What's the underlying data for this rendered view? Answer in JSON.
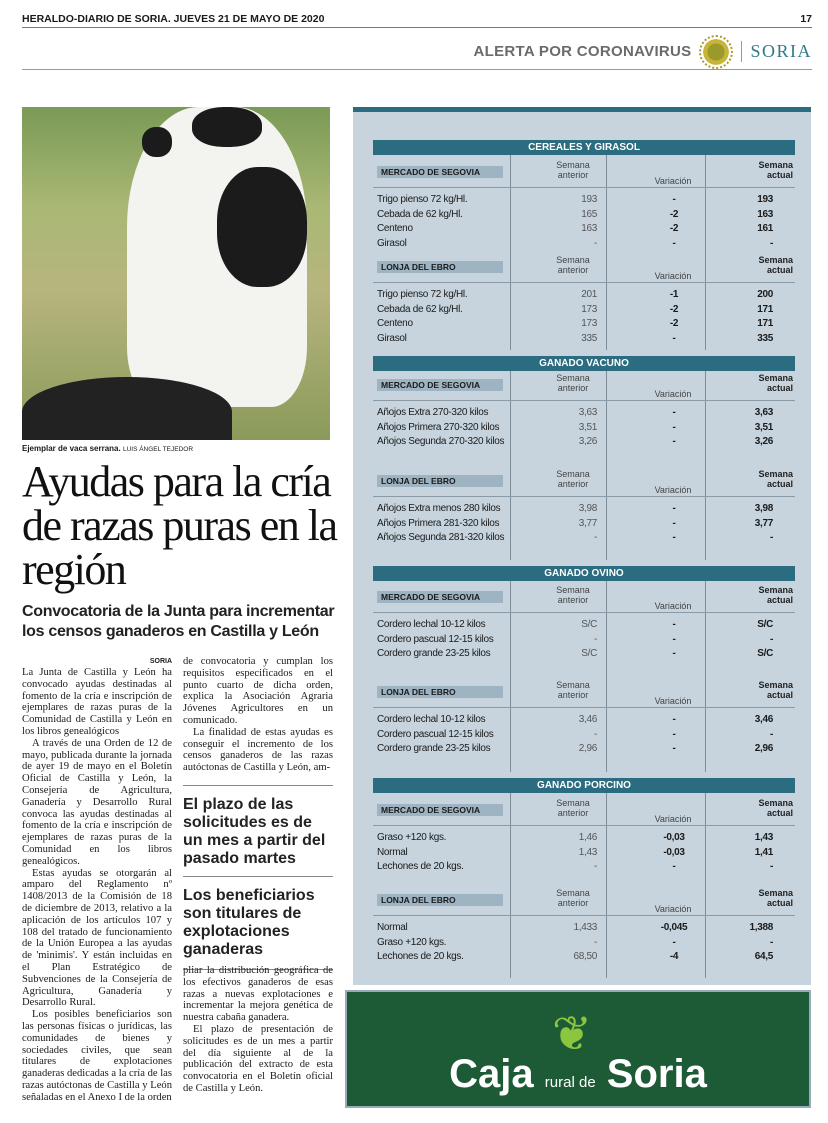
{
  "header": {
    "paper": "HERALDO-DIARIO DE SORIA. JUEVES 21 DE MAYO DE 2020",
    "page": "17",
    "section": "ALERTA POR CORONAVIRUS",
    "edition": "SORIA"
  },
  "photo": {
    "caption": "Ejemplar de vaca serrana.",
    "credit": "LUIS ÁNGEL TEJEDOR"
  },
  "article": {
    "headline": "Ayudas para la cría de razas puras en la región",
    "subhead": "Convocatoria de la Junta para incrementar los censos ganaderos en Castilla y León",
    "location": "SORIA",
    "col1": [
      "La Junta de Castilla y León ha convocado ayudas destinadas al fomento de la cría e inscripción de ejemplares de razas puras de la Comunidad de Castilla y León en los libros genealógicos",
      "A través de una Orden de 12 de mayo, publicada durante la jornada de ayer 19 de mayo en el Boletín Oficial de Castilla y León, la Consejería de Agricultura, Ganadería y Desarrollo Rural convoca las ayudas destinadas al fomento de la cría e inscripción de ejemplares de razas puras de la Comunidad en los libros genealógicos.",
      "Estas ayudas se otorgarán al amparo del Reglamento nº 1408/2013 de la Comisión de 18 de diciembre de 2013, relativo a la aplicación de los artículos 107 y 108 del tratado de funcionamiento de la Unión Europea a las ayudas de 'minimis'. Y están incluidas en el Plan Estratégico de Subvenciones de la Consejería de Agricultura, Ganadería y Desarrollo Rural.",
      "Los posibles beneficiarios son las personas físicas o jurídicas, las comunidades de bienes y sociedades civiles, que sean titulares de explotaciones ganaderas dedicadas a la cría de las razas autóctonas de Castilla y León señaladas en el Anexo I de la orden"
    ],
    "col2a": [
      "de convocatoria y cumplan los requisitos especificados en el punto cuarto de dicha orden, explica la Asociación Agraria Jóvenes Agricultores en un comunicado.",
      "La finalidad de estas ayudas es conseguir el incremento de los censos ganaderos de las razas autóctonas de Castilla y León, am-"
    ],
    "pull1": "El plazo de las solicitudes es de un mes a partir del pasado martes",
    "pull2": "Los beneficiarios son titulares de explotaciones ganaderas",
    "col2b": [
      "pliar la distribución geográfica de los efectivos ganaderos de esas razas a nuevas explotaciones e incrementar la mejora genética de nuestra cabaña ganadera.",
      "El plazo de presentación de solicitudes es de un mes a partir del día siguiente al de la publicación del extracto de esta convocatoria en el Boletín oficial de Castilla y León."
    ]
  },
  "prices": {
    "col_anterior": "Semana anterior",
    "col_variacion": "Variación",
    "col_actual": "Semana actual",
    "sections": [
      {
        "title": "CEREALES Y GIRASOL",
        "blocks": [
          {
            "market": "MERCADO DE SEGOVIA",
            "rows": [
              [
                "Trigo pienso 72 kg/Hl.",
                "193",
                "-",
                "193"
              ],
              [
                "Cebada de 62 kg/Hl.",
                "165",
                "-2",
                "163"
              ],
              [
                "Centeno",
                "163",
                "-2",
                "161"
              ],
              [
                "Girasol",
                "-",
                "-",
                "-"
              ]
            ]
          },
          {
            "market": "LONJA DEL EBRO",
            "rows": [
              [
                "Trigo pienso 72 kg/Hl.",
                "201",
                "-1",
                "200"
              ],
              [
                "Cebada de 62 kg/Hl.",
                "173",
                "-2",
                "171"
              ],
              [
                "Centeno",
                "173",
                "-2",
                "171"
              ],
              [
                "Girasol",
                "335",
                "-",
                "335"
              ]
            ]
          }
        ]
      },
      {
        "title": "GANADO VACUNO",
        "blocks": [
          {
            "market": "MERCADO DE SEGOVIA",
            "rows": [
              [
                "Añojos Extra 270-320 kilos",
                "3,63",
                "-",
                "3,63"
              ],
              [
                "Añojos Primera 270-320 kilos",
                "3,51",
                "-",
                "3,51"
              ],
              [
                "Añojos Segunda 270-320 kilos",
                "3,26",
                "-",
                "3,26"
              ]
            ]
          },
          {
            "market": "LONJA DEL EBRO",
            "rows": [
              [
                "Añojos Extra menos 280 kilos",
                "3,98",
                "-",
                "3,98"
              ],
              [
                "Añojos Primera 281-320 kilos",
                "3,77",
                "-",
                "3,77"
              ],
              [
                "Añojos Segunda 281-320 kilos",
                "-",
                "-",
                "-"
              ]
            ]
          }
        ]
      },
      {
        "title": "GANADO OVINO",
        "blocks": [
          {
            "market": "MERCADO DE SEGOVIA",
            "rows": [
              [
                "Cordero lechal 10-12 kilos",
                "S/C",
                "-",
                "S/C"
              ],
              [
                "Cordero pascual 12-15 kilos",
                "-",
                "-",
                "-"
              ],
              [
                "Cordero grande 23-25 kilos",
                "S/C",
                "-",
                "S/C"
              ]
            ]
          },
          {
            "market": "LONJA DEL EBRO",
            "rows": [
              [
                "Cordero lechal 10-12 kilos",
                "3,46",
                "-",
                "3,46"
              ],
              [
                "Cordero pascual 12-15 kilos",
                "-",
                "-",
                "-"
              ],
              [
                "Cordero grande 23-25 kilos",
                "2,96",
                "-",
                "2,96"
              ]
            ]
          }
        ]
      },
      {
        "title": "GANADO PORCINO",
        "blocks": [
          {
            "market": "MERCADO DE SEGOVIA",
            "rows": [
              [
                "Graso +120 kgs.",
                "1,46",
                "-0,03",
                "1,43"
              ],
              [
                "Normal",
                "1,43",
                "-0,03",
                "1,41"
              ],
              [
                "Lechones de 20 kgs.",
                "-",
                "-",
                "-"
              ]
            ]
          },
          {
            "market": "LONJA DEL EBRO",
            "rows": [
              [
                "Normal",
                "1,433",
                "-0,045",
                "1,388"
              ],
              [
                "Graso +120 kgs.",
                "-",
                "-",
                "-"
              ],
              [
                "Lechones de 20 kgs.",
                "68,50",
                "-4",
                "64,5"
              ]
            ]
          }
        ]
      }
    ]
  },
  "ad": {
    "brand_caja": "Caja",
    "brand_rural": "rural de",
    "brand_soria": "Soria",
    "color": "#1d5a36"
  }
}
